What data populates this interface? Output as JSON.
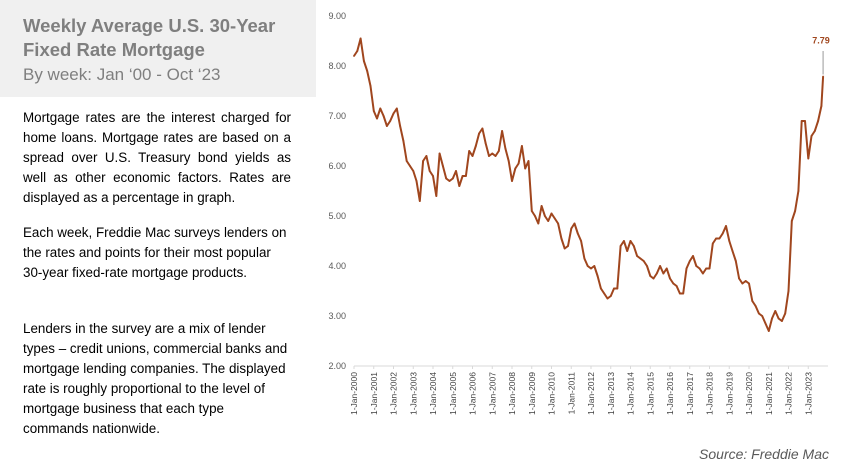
{
  "panel": {
    "title": "Weekly Average U.S. 30-Year Fixed Rate Mortgage",
    "subtitle": "By week: Jan ‘00 - Oct ‘23",
    "paragraphs": [
      "Mortgage rates are the interest charged for home loans. Mortgage rates are based on a spread over U.S. Treasury bond yields as well as other economic factors. Rates are displayed as a percentage in graph.",
      "Each week, Freddie Mac surveys lenders on the rates and points for their most popular 30-year fixed-rate mortgage products.",
      "Lenders in the survey are a mix of lender types – credit unions, commercial banks and mortgage lending companies. The displayed rate is roughly proportional to the level of mortgage business that each type commands nationwide."
    ],
    "source": "Source: Freddie Mac"
  },
  "chart_data": {
    "type": "line",
    "title": "",
    "xlabel": "",
    "ylabel": "",
    "ylim": [
      2.0,
      9.0
    ],
    "yticks": [
      "2.00",
      "3.00",
      "4.00",
      "5.00",
      "6.00",
      "7.00",
      "8.00",
      "9.00"
    ],
    "xticks": [
      "1-Jan-2000",
      "1-Jan-2001",
      "1-Jan-2002",
      "1-Jan-2003",
      "1-Jan-2004",
      "1-Jan-2005",
      "1-Jan-2006",
      "1-Jan-2007",
      "1-Jan-2008",
      "1-Jan-2009",
      "1-Jan-2010",
      "1-Jan-2011",
      "1-Jan-2012",
      "1-Jan-2013",
      "1-Jan-2014",
      "1-Jan-2015",
      "1-Jan-2016",
      "1-Jan-2017",
      "1-Jan-2018",
      "1-Jan-2019",
      "1-Jan-2020",
      "1-Jan-2021",
      "1-Jan-2022",
      "1-Jan-2023"
    ],
    "grid": false,
    "line_color": "#a0461e",
    "annotation": {
      "x": "2023-10",
      "label": "7.79",
      "color": "#a0461e"
    },
    "series": [
      {
        "x": [
          "2000-01",
          "2000-03",
          "2000-05",
          "2000-07",
          "2000-09",
          "2000-11",
          "2001-01",
          "2001-03",
          "2001-05",
          "2001-07",
          "2001-09",
          "2001-11",
          "2002-01",
          "2002-03",
          "2002-05",
          "2002-07",
          "2002-09",
          "2002-11",
          "2003-01",
          "2003-03",
          "2003-05",
          "2003-07",
          "2003-09",
          "2003-11",
          "2004-01",
          "2004-03",
          "2004-05",
          "2004-07",
          "2004-09",
          "2004-11",
          "2005-01",
          "2005-03",
          "2005-05",
          "2005-07",
          "2005-09",
          "2005-11",
          "2006-01",
          "2006-03",
          "2006-05",
          "2006-07",
          "2006-09",
          "2006-11",
          "2007-01",
          "2007-03",
          "2007-05",
          "2007-07",
          "2007-09",
          "2007-11",
          "2008-01",
          "2008-03",
          "2008-05",
          "2008-07",
          "2008-09",
          "2008-11",
          "2009-01",
          "2009-03",
          "2009-05",
          "2009-07",
          "2009-09",
          "2009-11",
          "2010-01",
          "2010-03",
          "2010-05",
          "2010-07",
          "2010-09",
          "2010-11",
          "2011-01",
          "2011-03",
          "2011-05",
          "2011-07",
          "2011-09",
          "2011-11",
          "2012-01",
          "2012-03",
          "2012-05",
          "2012-07",
          "2012-09",
          "2012-11",
          "2013-01",
          "2013-03",
          "2013-05",
          "2013-07",
          "2013-09",
          "2013-11",
          "2014-01",
          "2014-03",
          "2014-05",
          "2014-07",
          "2014-09",
          "2014-11",
          "2015-01",
          "2015-03",
          "2015-05",
          "2015-07",
          "2015-09",
          "2015-11",
          "2016-01",
          "2016-03",
          "2016-05",
          "2016-07",
          "2016-09",
          "2016-11",
          "2017-01",
          "2017-03",
          "2017-05",
          "2017-07",
          "2017-09",
          "2017-11",
          "2018-01",
          "2018-03",
          "2018-05",
          "2018-07",
          "2018-09",
          "2018-11",
          "2019-01",
          "2019-03",
          "2019-05",
          "2019-07",
          "2019-09",
          "2019-11",
          "2020-01",
          "2020-03",
          "2020-05",
          "2020-07",
          "2020-09",
          "2020-11",
          "2021-01",
          "2021-03",
          "2021-05",
          "2021-07",
          "2021-09",
          "2021-11",
          "2022-01",
          "2022-03",
          "2022-05",
          "2022-07",
          "2022-09",
          "2022-11",
          "2023-01",
          "2023-03",
          "2023-05",
          "2023-07",
          "2023-09",
          "2023-10"
        ],
        "values": [
          8.2,
          8.3,
          8.55,
          8.1,
          7.9,
          7.6,
          7.1,
          6.95,
          7.15,
          7.0,
          6.8,
          6.9,
          7.05,
          7.15,
          6.8,
          6.5,
          6.1,
          6.0,
          5.9,
          5.7,
          5.3,
          6.1,
          6.2,
          5.9,
          5.8,
          5.4,
          6.25,
          6.0,
          5.75,
          5.7,
          5.75,
          5.9,
          5.6,
          5.8,
          5.8,
          6.3,
          6.2,
          6.4,
          6.65,
          6.75,
          6.45,
          6.2,
          6.25,
          6.2,
          6.3,
          6.7,
          6.35,
          6.1,
          5.7,
          5.95,
          6.05,
          6.4,
          5.95,
          6.1,
          5.1,
          5.0,
          4.85,
          5.2,
          5.0,
          4.9,
          5.05,
          4.95,
          4.85,
          4.55,
          4.35,
          4.4,
          4.75,
          4.85,
          4.65,
          4.5,
          4.15,
          4.0,
          3.95,
          4.0,
          3.8,
          3.55,
          3.45,
          3.35,
          3.4,
          3.55,
          3.55,
          4.4,
          4.5,
          4.3,
          4.5,
          4.4,
          4.2,
          4.15,
          4.1,
          4.0,
          3.8,
          3.75,
          3.85,
          4.0,
          3.85,
          3.95,
          3.75,
          3.65,
          3.6,
          3.45,
          3.45,
          3.95,
          4.1,
          4.2,
          4.0,
          3.95,
          3.85,
          3.95,
          3.95,
          4.45,
          4.55,
          4.55,
          4.65,
          4.8,
          4.5,
          4.3,
          4.1,
          3.75,
          3.65,
          3.7,
          3.65,
          3.3,
          3.2,
          3.05,
          3.0,
          2.85,
          2.7,
          2.95,
          3.1,
          2.95,
          2.9,
          3.05,
          3.5,
          4.9,
          5.1,
          5.5,
          6.9,
          6.9,
          6.15,
          6.6,
          6.7,
          6.9,
          7.2,
          7.79
        ]
      }
    ]
  }
}
